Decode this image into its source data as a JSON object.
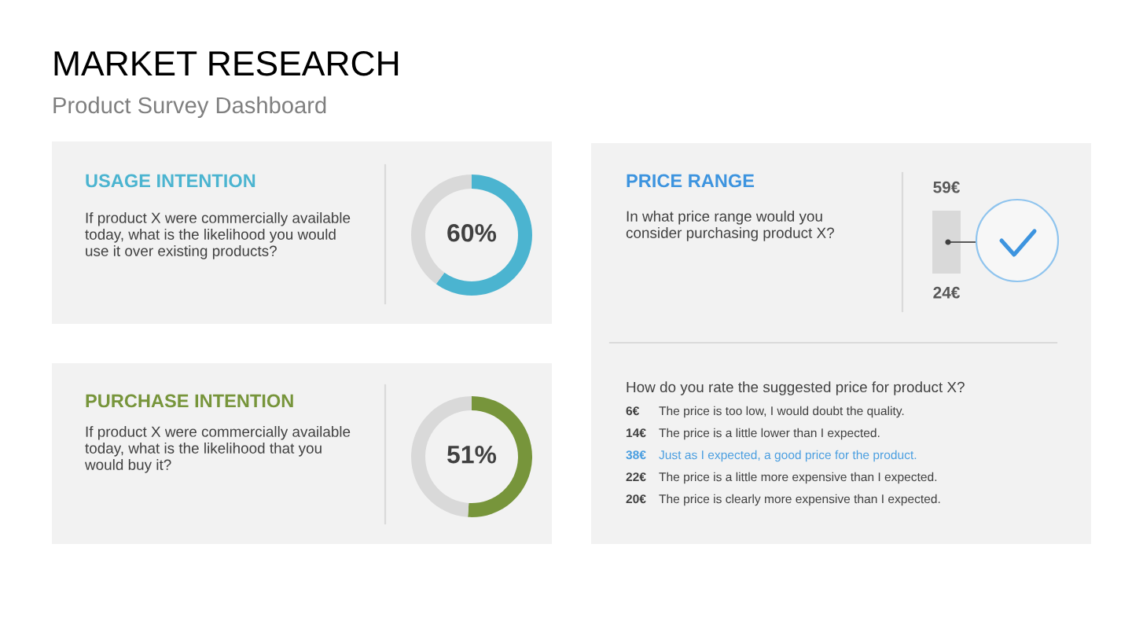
{
  "chart_data": [
    {
      "type": "other",
      "title": "MARKET RESEARCH",
      "subtitle": "Product Survey Dashboard"
    },
    {
      "type": "donut",
      "title": "USAGE INTENTION",
      "annotations": [
        "If product X were commercially available\ntoday, what is the likelihood you would\nuse it over existing products?"
      ],
      "categories": [
        null,
        null
      ],
      "values": [
        60,
        40
      ],
      "colors": [
        "#4bb4d0",
        "#d9d9d9"
      ],
      "value_labels": [
        "60%",
        null
      ]
    },
    {
      "type": "other",
      "title": "PRICE RANGE",
      "color": "#3d94df",
      "annotations": [
        "In what price range would you\nconsider purchasing product X?",
        "59€",
        "24€"
      ]
    },
    {
      "type": "donut",
      "title": "PURCHASE INTENTION",
      "annotations": [
        "If product X were commercially available\ntoday, what is the likelihood that you\nwould buy it?"
      ],
      "categories": [
        null,
        null
      ],
      "values": [
        51,
        49
      ],
      "colors": [
        "#77953b",
        "#d9d9d9"
      ],
      "value_labels": [
        "51%",
        null
      ]
    },
    {
      "type": "other",
      "title": "How do you rate the suggested price for product X?",
      "categories": [
        "The price is too low, I would doubt the quality.",
        "The price is a little lower than I expected.",
        "Just as I expected, a good price for the product.",
        "The price is a little more expensive than I expected.",
        "The price is clearly more expensive than I expected."
      ],
      "value_labels": [
        "6€",
        "14€",
        "38€",
        "22€",
        "20€"
      ],
      "colors": [
        null,
        null,
        "#4a9ee0",
        null,
        null
      ]
    }
  ]
}
